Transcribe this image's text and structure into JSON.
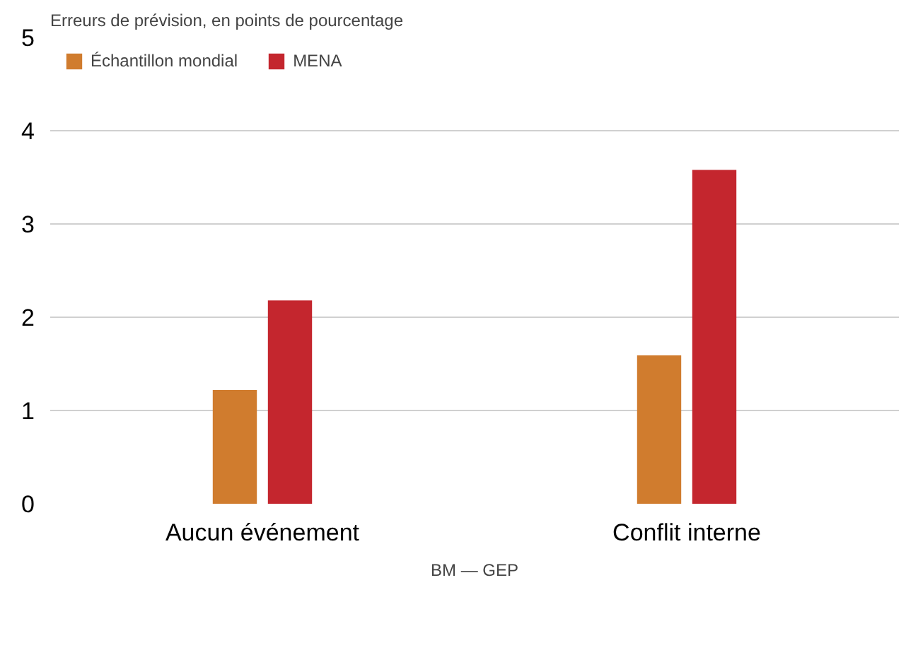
{
  "chart_data": {
    "type": "bar",
    "ylabel": "Erreurs de prévision, en points de pourcentage",
    "categories": [
      "Aucun événement",
      "Conflit interne"
    ],
    "series": [
      {
        "name": "Échantillon mondial",
        "color": "#d07c2e",
        "values": [
          1.22,
          1.59
        ]
      },
      {
        "name": "MENA",
        "color": "#c4262e",
        "values": [
          2.18,
          3.58
        ]
      }
    ],
    "ylim": [
      0,
      5
    ],
    "yticks": [
      0,
      1,
      2,
      3,
      4,
      5
    ],
    "grid": "y",
    "legend": "top left",
    "annotations": [
      "BM — GEP"
    ]
  }
}
